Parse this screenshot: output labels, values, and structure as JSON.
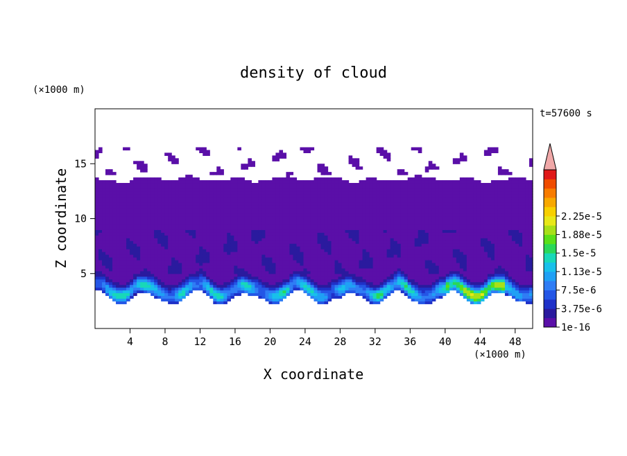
{
  "chart_data": {
    "type": "heatmap",
    "title": "density of cloud",
    "xlabel": "X coordinate",
    "ylabel": "Z coordinate",
    "x_unit": "(×1000 m)",
    "y_unit": "(×1000 m)",
    "time_label": "t=57600 s",
    "xlim": [
      0,
      50
    ],
    "ylim": [
      0,
      20
    ],
    "xticks": [
      4,
      8,
      12,
      16,
      20,
      24,
      28,
      32,
      36,
      40,
      44,
      48
    ],
    "yticks": [
      5,
      10,
      15
    ],
    "grid": false,
    "colorbar": {
      "position": "right",
      "extend": "max",
      "labels": [
        "1e-16",
        "3.75e-6",
        "7.5e-6",
        "1.13e-5",
        "1.5e-5",
        "1.88e-5",
        "2.25e-5"
      ],
      "colors": [
        "#5a0fa8",
        "#2a1a9e",
        "#1f31c8",
        "#2456e6",
        "#2f7df5",
        "#1fa0f5",
        "#18c0ea",
        "#18d8b8",
        "#2ad858",
        "#5ae018",
        "#a8e018",
        "#e8e818",
        "#f8d000",
        "#f8a800",
        "#f87c00",
        "#f04c00",
        "#e01818",
        "#f0a8a8"
      ]
    }
  }
}
